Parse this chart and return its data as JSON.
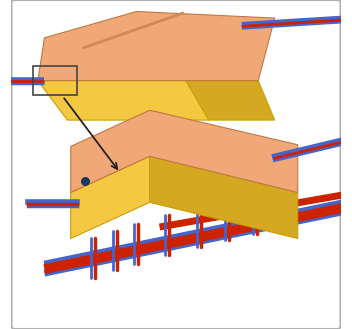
{
  "bg_color": "#ffffff",
  "border_color": "#b0b0b0",
  "skin_color": "#F0A878",
  "skin_color2": "#E89060",
  "fat_color": "#F5C842",
  "fat_side_color": "#D4A820",
  "skin_dark": "#D48858",
  "vessel_red": "#CC2200",
  "vessel_blue": "#4466CC",
  "dot_color": "#1a3a5c",
  "arrow_color": "#222222",
  "box_color": "#444444",
  "figsize": [
    3.52,
    3.29
  ],
  "dpi": 100
}
